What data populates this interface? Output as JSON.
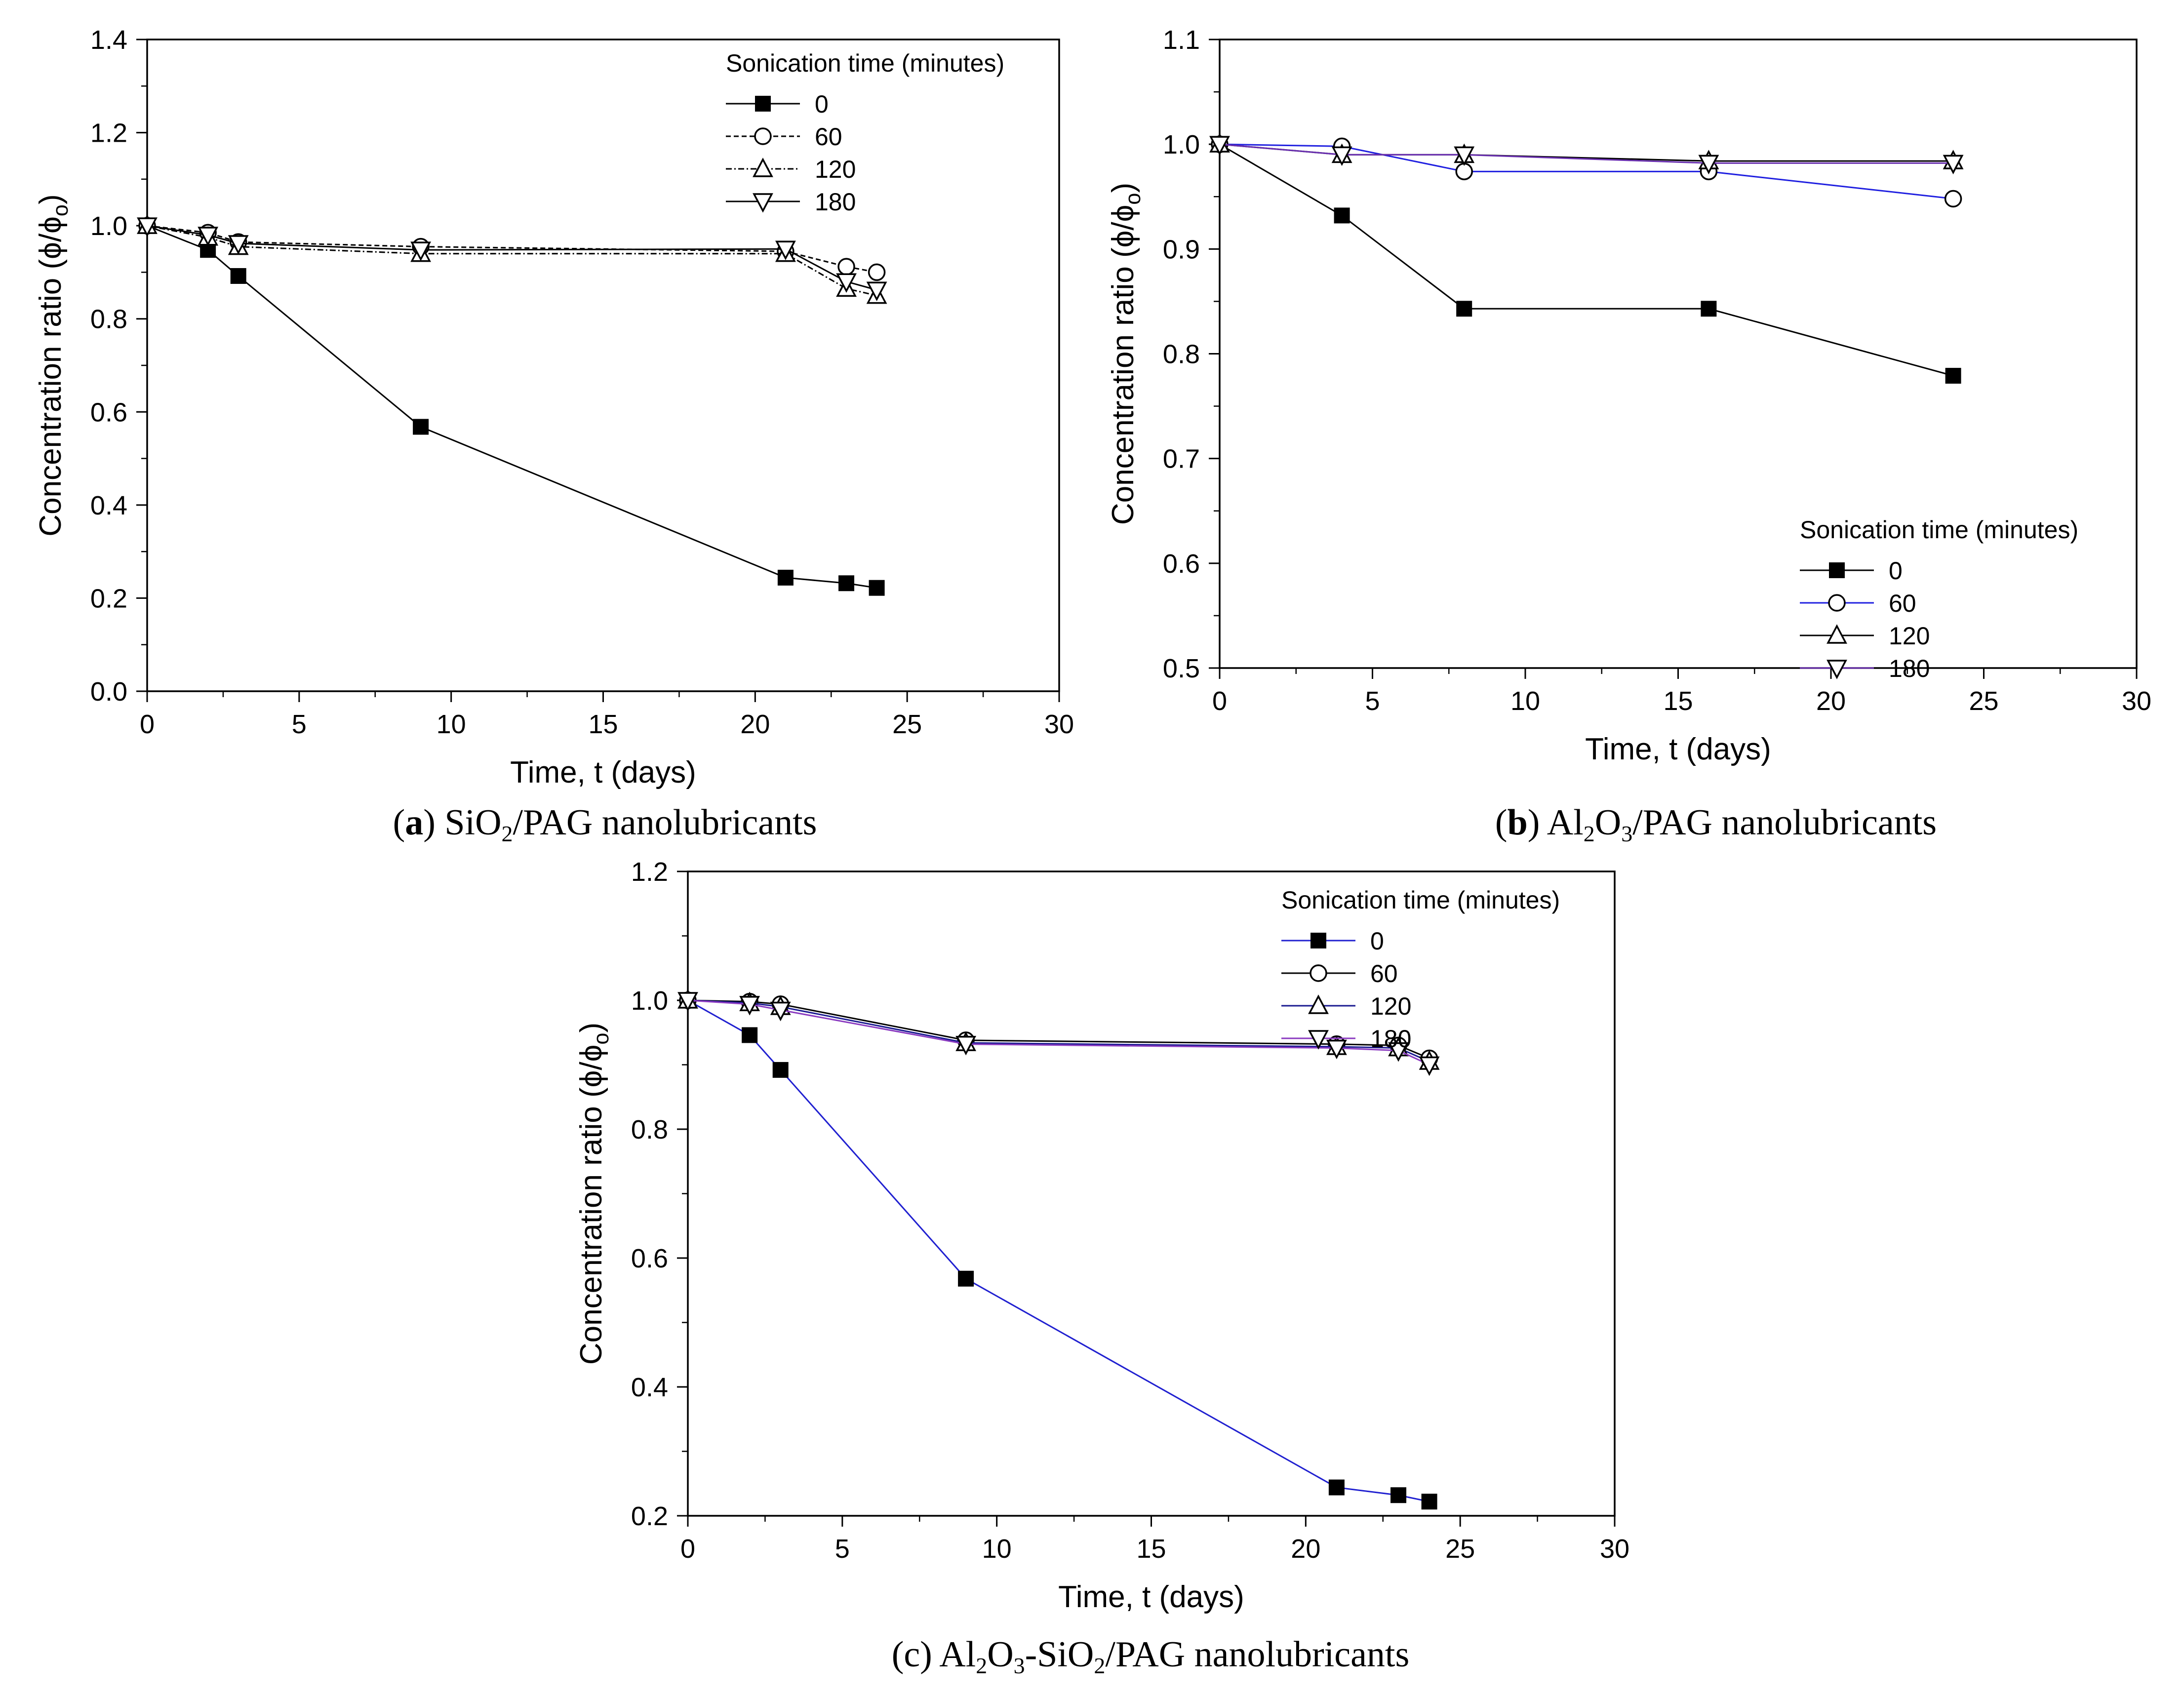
{
  "figure": {
    "chart_data": [
      {
        "id": "a",
        "type": "line",
        "title": "",
        "xlabel": "Time, t (days)",
        "ylabel_main": "Concentration ratio (",
        "ylabel_tail_ratio": "ϕ/ϕ",
        "ylabel_sub": "o",
        "ylabel_close": ")",
        "xlim": [
          0,
          30
        ],
        "ylim": [
          0.0,
          1.4
        ],
        "xticks": [
          0,
          5,
          10,
          15,
          20,
          25,
          30
        ],
        "xtick_labels": [
          "0",
          "5",
          "10",
          "15",
          "20",
          "25",
          "30"
        ],
        "yticks": [
          0.0,
          0.2,
          0.4,
          0.6,
          0.8,
          1.0,
          1.2,
          1.4
        ],
        "ytick_labels": [
          "0.0",
          "0.2",
          "0.4",
          "0.6",
          "0.8",
          "1.0",
          "1.2",
          "1.4"
        ],
        "legend": {
          "title": "Sonication time (minutes)",
          "location": "top-right"
        },
        "caption": {
          "open": "(",
          "letter": "a",
          "close": ")",
          "pre": " SiO",
          "sub": "2",
          "post": "/PAG nanolubricants"
        },
        "series": [
          {
            "name": "0",
            "marker": "square",
            "color": "#000000",
            "dash": "solid",
            "x": [
              0,
              2,
              3,
              9,
              21,
              23,
              24
            ],
            "y": [
              1.0,
              0.948,
              0.892,
              0.568,
              0.244,
              0.232,
              0.222
            ]
          },
          {
            "name": "60",
            "marker": "circle",
            "color": "#000000",
            "dash": "dashed",
            "x": [
              0,
              2,
              3,
              9,
              21,
              23,
              24
            ],
            "y": [
              1.0,
              0.985,
              0.965,
              0.955,
              0.945,
              0.912,
              0.9
            ]
          },
          {
            "name": "120",
            "marker": "triangle-up",
            "color": "#000000",
            "dash": "dashdot",
            "x": [
              0,
              2,
              3,
              9,
              21,
              23,
              24
            ],
            "y": [
              1.0,
              0.975,
              0.955,
              0.94,
              0.94,
              0.865,
              0.85
            ]
          },
          {
            "name": "180",
            "marker": "triangle-down",
            "color": "#000000",
            "dash": "solid",
            "x": [
              0,
              2,
              3,
              9,
              21,
              23,
              24
            ],
            "y": [
              1.0,
              0.98,
              0.962,
              0.948,
              0.95,
              0.88,
              0.862
            ]
          }
        ]
      },
      {
        "id": "b",
        "type": "line",
        "title": "",
        "xlabel": "Time, t (days)",
        "ylabel_main": "Concentration ratio (",
        "ylabel_tail_ratio": "ϕ/ϕ",
        "ylabel_sub": "o",
        "ylabel_close": ")",
        "xlim": [
          0,
          30
        ],
        "ylim": [
          0.5,
          1.1
        ],
        "xticks": [
          0,
          5,
          10,
          15,
          20,
          25,
          30
        ],
        "xtick_labels": [
          "0",
          "5",
          "10",
          "15",
          "20",
          "25",
          "30"
        ],
        "yticks": [
          0.5,
          0.6,
          0.7,
          0.8,
          0.9,
          1.0,
          1.1
        ],
        "ytick_labels": [
          "0.5",
          "0.6",
          "0.7",
          "0.8",
          "0.9",
          "1.0",
          "1.1"
        ],
        "legend": {
          "title": "Sonication time (minutes)",
          "location": "bottom-right"
        },
        "caption": {
          "open": "(",
          "letter": "b",
          "close": ")",
          "pre": " Al",
          "sub": "2",
          "mid": "O",
          "sub2": "3",
          "post": "/PAG nanolubricants"
        },
        "series": [
          {
            "name": "0",
            "marker": "square",
            "color": "#000000",
            "dash": "solid",
            "x": [
              0,
              4,
              8,
              16,
              24
            ],
            "y": [
              1.0,
              0.932,
              0.843,
              0.843,
              0.779
            ]
          },
          {
            "name": "60",
            "marker": "circle",
            "color": "#2020e0",
            "dash": "solid",
            "x": [
              0,
              4,
              8,
              16,
              24
            ],
            "y": [
              1.0,
              0.998,
              0.974,
              0.974,
              0.948
            ]
          },
          {
            "name": "120",
            "marker": "triangle-up",
            "color": "#000000",
            "dash": "solid",
            "x": [
              0,
              4,
              8,
              16,
              24
            ],
            "y": [
              1.0,
              0.99,
              0.99,
              0.984,
              0.984
            ]
          },
          {
            "name": "180",
            "marker": "triangle-down",
            "color": "#6a30b0",
            "dash": "solid",
            "x": [
              0,
              4,
              8,
              16,
              24
            ],
            "y": [
              1.0,
              0.99,
              0.99,
              0.982,
              0.982
            ]
          }
        ]
      },
      {
        "id": "c",
        "type": "line",
        "title": "",
        "xlabel": "Time, t (days)",
        "ylabel_main": "Concentration ratio (",
        "ylabel_tail_ratio": "ϕ/ϕ",
        "ylabel_sub": "o",
        "ylabel_close": ")",
        "xlim": [
          0,
          30
        ],
        "ylim": [
          0.2,
          1.2
        ],
        "xticks": [
          0,
          5,
          10,
          15,
          20,
          25,
          30
        ],
        "xtick_labels": [
          "0",
          "5",
          "10",
          "15",
          "20",
          "25",
          "30"
        ],
        "yticks": [
          0.2,
          0.4,
          0.6,
          0.8,
          1.0,
          1.2
        ],
        "ytick_labels": [
          "0.2",
          "0.4",
          "0.6",
          "0.8",
          "1.0",
          "1.2"
        ],
        "legend": {
          "title": "Sonication time (minutes)",
          "location": "top-right"
        },
        "caption": {
          "open": "(c)",
          "letter": "",
          "close": "",
          "pre": " Al",
          "sub": "2",
          "mid": "O",
          "sub2": "3",
          "post": "-SiO",
          "sub3": "2",
          "post2": "/PAG nanolubricants"
        },
        "series": [
          {
            "name": "0",
            "marker": "square",
            "color": "#2020d0",
            "dash": "solid",
            "x": [
              0,
              2,
              3,
              9,
              21,
              23,
              24
            ],
            "y": [
              1.0,
              0.946,
              0.892,
              0.568,
              0.244,
              0.232,
              0.222
            ]
          },
          {
            "name": "60",
            "marker": "circle",
            "color": "#000000",
            "dash": "solid",
            "x": [
              0,
              2,
              3,
              9,
              21,
              23,
              24
            ],
            "y": [
              1.0,
              0.998,
              0.994,
              0.938,
              0.932,
              0.93,
              0.91
            ]
          },
          {
            "name": "120",
            "marker": "triangle-up",
            "color": "#1a1a90",
            "dash": "solid",
            "x": [
              0,
              2,
              3,
              9,
              21,
              23,
              24
            ],
            "y": [
              1.0,
              0.996,
              0.99,
              0.934,
              0.928,
              0.926,
              0.905
            ]
          },
          {
            "name": "180",
            "marker": "triangle-down",
            "color": "#8a3ac0",
            "dash": "solid",
            "x": [
              0,
              2,
              3,
              9,
              21,
              23,
              24
            ],
            "y": [
              1.0,
              0.994,
              0.985,
              0.932,
              0.926,
              0.922,
              0.9
            ]
          }
        ]
      }
    ]
  }
}
